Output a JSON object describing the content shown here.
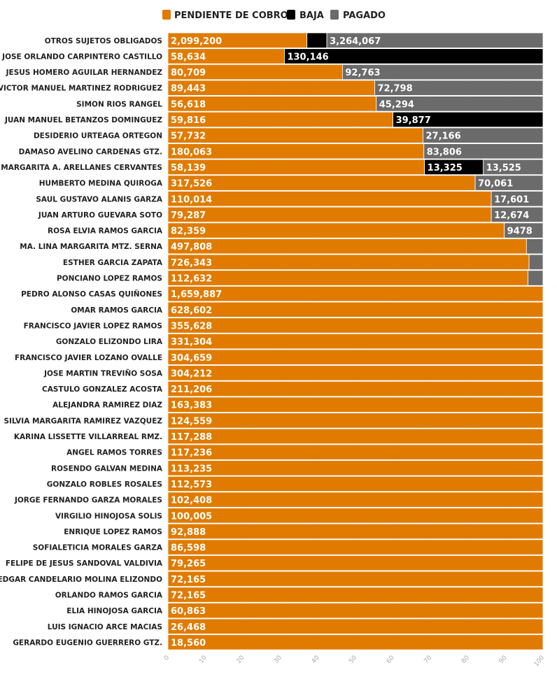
{
  "chart_data": {
    "type": "bar",
    "orientation": "horizontal",
    "stacked": "percent",
    "xlim": [
      0,
      100
    ],
    "x_ticks": [
      "0",
      "10",
      "20",
      "30",
      "40",
      "50",
      "60",
      "70",
      "80",
      "90",
      "100"
    ],
    "legend_position": "top",
    "colors": {
      "pendiente": "#e07b00",
      "baja": "#000000",
      "pagado": "#6b6b6b"
    },
    "series": [
      {
        "key": "pendiente",
        "name": "PENDIENTE DE COBRO"
      },
      {
        "key": "baja",
        "name": "BAJA"
      },
      {
        "key": "pagado",
        "name": "PAGADO"
      }
    ],
    "categories": [
      "OTROS SUJETOS OBLIGADOS",
      "JOSE ORLANDO CARPINTERO CASTILLO",
      "JESUS HOMERO AGUILAR HERNANDEZ",
      "VICTOR MANUEL MARTINEZ RODRIGUEZ",
      "SIMON RIOS RANGEL",
      "JUAN MANUEL BETANZOS DOMINGUEZ",
      "DESIDERIO URTEAGA ORTEGON",
      "DAMASO AVELINO CARDENAS GTZ.",
      "MARGARITA A. ARELLANES CERVANTES",
      "HUMBERTO MEDINA QUIROGA",
      "SAUL GUSTAVO ALANIS GARZA",
      "JUAN ARTURO GUEVARA SOTO",
      "ROSA ELVIA RAMOS GARCIA",
      "MA. LINA MARGARITA MTZ. SERNA",
      "ESTHER GARCIA ZAPATA",
      "PONCIANO LOPEZ RAMOS",
      "PEDRO ALONSO CASAS QUIÑONES",
      "OMAR RAMOS GARCIA",
      "FRANCISCO JAVIER LOPEZ RAMOS",
      "GONZALO ELIZONDO LIRA",
      "FRANCISCO JAVIER LOZANO OVALLE",
      "JOSE MARTIN TREVIÑO SOSA",
      "CASTULO GONZALEZ ACOSTA",
      "ALEJANDRA RAMIREZ DIAZ",
      "SILVIA MARGARITA RAMIREZ VAZQUEZ",
      "KARINA LISSETTE VILLARREAL RMZ.",
      "ANGEL RAMOS TORRES",
      "ROSENDO GALVAN MEDINA",
      "GONZALO ROBLES ROSALES",
      "JORGE FERNANDO GARZA MORALES",
      "VIRGILIO HINOJOSA SOLIS",
      "ENRIQUE LOPEZ RAMOS",
      "SOFIALETICIA MORALES GARZA",
      "FELIPE DE JESUS SANDOVAL VALDIVIA",
      "EDGAR CANDELARIO MOLINA ELIZONDO",
      "ORLANDO RAMOS GARCIA",
      "ELIA HINOJOSA GARCIA",
      "LUIS IGNACIO ARCE MACIAS",
      "GERARDO EUGENIO GUERRERO GTZ."
    ],
    "pendiente": [
      2099200,
      58634,
      80709,
      89443,
      56618,
      59816,
      57732,
      180063,
      58139,
      317526,
      110014,
      79287,
      82359,
      497808,
      726343,
      112632,
      1659887,
      628602,
      355628,
      331304,
      304659,
      304212,
      211206,
      163383,
      124559,
      117288,
      117236,
      113235,
      112573,
      102408,
      100005,
      92888,
      86598,
      79265,
      72165,
      72165,
      60863,
      26468,
      18560
    ],
    "baja": [
      300000,
      130146,
      0,
      0,
      0,
      39877,
      0,
      0,
      13325,
      0,
      0,
      0,
      0,
      0,
      0,
      0,
      0,
      0,
      0,
      0,
      0,
      0,
      0,
      0,
      0,
      0,
      0,
      0,
      0,
      0,
      0,
      0,
      0,
      0,
      0,
      0,
      0,
      0,
      0
    ],
    "pagado": [
      3264067,
      0,
      92763,
      72798,
      45294,
      0,
      27166,
      83806,
      13525,
      70061,
      17601,
      12674,
      9478,
      23000,
      28000,
      4700,
      0,
      0,
      0,
      0,
      0,
      0,
      0,
      0,
      0,
      0,
      0,
      0,
      0,
      0,
      0,
      0,
      0,
      0,
      0,
      0,
      0,
      0,
      0
    ],
    "value_labels": {
      "pendiente": [
        "2,099,200",
        "58,634",
        "80,709",
        "89,443",
        "56,618",
        "59,816",
        "57,732",
        "180,063",
        "58,139",
        "317,526",
        "110,014",
        "79,287",
        "82,359",
        "497,808",
        "726,343",
        "112,632",
        "1,659,887",
        "628,602",
        "355,628",
        "331,304",
        "304,659",
        "304,212",
        "211,206",
        "163,383",
        "124,559",
        "117,288",
        "117,236",
        "113,235",
        "112,573",
        "102,408",
        "100,005",
        "92,888",
        "86,598",
        "79,265",
        "72,165",
        "72,165",
        "60,863",
        "26,468",
        "18,560"
      ],
      "baja": [
        "",
        "130,146",
        "",
        "",
        "",
        "39,877",
        "",
        "",
        "13,325",
        "",
        "",
        "",
        "",
        "",
        "",
        "",
        "",
        "",
        "",
        "",
        "",
        "",
        "",
        "",
        "",
        "",
        "",
        "",
        "",
        "",
        "",
        "",
        "",
        "",
        "",
        "",
        "",
        "",
        ""
      ],
      "pagado": [
        "3,264,067",
        "",
        "92,763",
        "72,798",
        "45,294",
        "",
        "27,166",
        "83,806",
        "13,525",
        "70,061",
        "17,601",
        "12,674",
        "9478",
        "",
        "",
        "",
        "",
        "",
        "",
        "",
        "",
        "",
        "",
        "",
        "",
        "",
        "",
        "",
        "",
        "",
        "",
        "",
        "",
        "",
        "",
        "",
        "",
        "",
        ""
      ]
    }
  }
}
